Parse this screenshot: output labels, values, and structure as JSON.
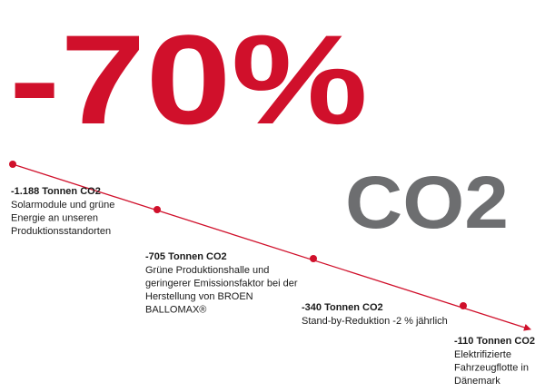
{
  "headline": "-70%",
  "subject": "CO2",
  "milestones": [
    {
      "title": "-1.188 Tonnen CO2",
      "lines": [
        "Solarmodule und grüne",
        "Energie an unseren",
        "Produktionsstandorten"
      ]
    },
    {
      "title": "-705 Tonnen CO2",
      "lines": [
        "Grüne Produktionshalle und",
        "geringerer Emissionsfaktor bei der",
        "Herstellung von BROEN",
        "BALLOMAX®"
      ]
    },
    {
      "title": "-340 Tonnen CO2",
      "lines": [
        "Stand-by-Reduktion -2 % jährlich"
      ]
    },
    {
      "title": "-110 Tonnen CO2",
      "lines": [
        "Elektrifizierte",
        "Fahrzeugflotte in",
        "Dänemark"
      ]
    }
  ]
}
